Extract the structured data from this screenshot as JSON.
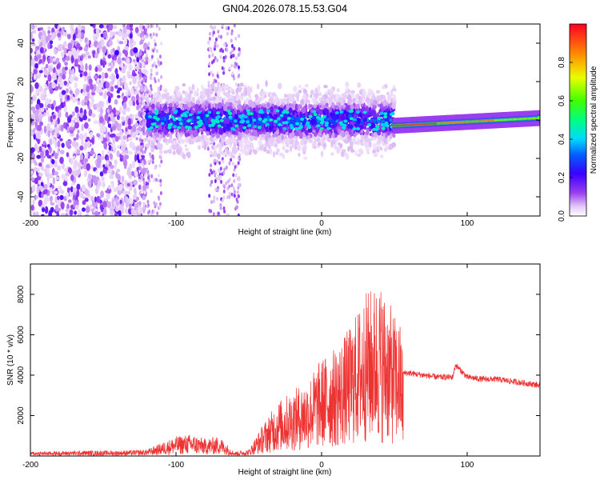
{
  "figure": {
    "title": "GN04.2026.078.15.53.G04"
  },
  "chart_data": [
    {
      "type": "heatmap",
      "xlabel": "Height of straight line (km)",
      "ylabel": "Frequency (Hz)",
      "xlim": [
        -200,
        150
      ],
      "ylim": [
        -50,
        50
      ],
      "xticks": [
        "-200",
        "-100",
        "0",
        "100"
      ],
      "xtick_values": [
        -200,
        -100,
        0,
        100
      ],
      "yticks": [
        "-40",
        "-20",
        "0",
        "20",
        "40"
      ],
      "ytick_values": [
        -40,
        -20,
        0,
        20,
        40
      ],
      "colorbar": {
        "label": "Normalized spectral amplitude",
        "range": [
          0,
          1
        ],
        "ticks": [
          "0.0",
          "0.2",
          "0.4",
          "0.6",
          "0.8"
        ],
        "tick_values": [
          0,
          0.2,
          0.4,
          0.6,
          0.8
        ],
        "colormap": [
          "#ffffff",
          "#8a2be2",
          "#0000ff",
          "#00ffff",
          "#00ff00",
          "#ffff00",
          "#ff0000"
        ]
      },
      "regions": [
        {
          "x": [
            -200,
            -130
          ],
          "description_amplitude": 0.12,
          "freq_spread": 50
        },
        {
          "x": [
            -130,
            50
          ],
          "description_amplitude": 0.25,
          "freq_spread": 12
        },
        {
          "x": [
            50,
            150
          ],
          "description_amplitude": 0.9,
          "freq_center": -3
        }
      ],
      "grid": false
    },
    {
      "type": "line",
      "xlabel": "Height of straight line (km)",
      "ylabel": "SNR (10 * v/v)",
      "xlim": [
        -200,
        150
      ],
      "ylim": [
        0,
        9500
      ],
      "xticks": [
        "-200",
        "-100",
        "0",
        "100"
      ],
      "xtick_values": [
        -200,
        -100,
        0,
        100
      ],
      "yticks": [
        "2000",
        "4000",
        "6000",
        "8000"
      ],
      "ytick_values": [
        2000,
        4000,
        6000,
        8000
      ],
      "color": "#ee3333",
      "series": [
        {
          "x": [
            -200,
            -180,
            -160,
            -140,
            -120,
            -110,
            -100,
            -90,
            -80,
            -70,
            -60,
            -50,
            -40,
            -30,
            -20,
            -10,
            0,
            10,
            20,
            30,
            40,
            50,
            55,
            56,
            60,
            70,
            80,
            90,
            92,
            100,
            110,
            120,
            130,
            140,
            150
          ],
          "values": [
            200,
            220,
            250,
            240,
            300,
            600,
            900,
            1000,
            800,
            900,
            200,
            300,
            1500,
            2500,
            3000,
            3500,
            4500,
            5000,
            6000,
            7500,
            8000,
            6500,
            6000,
            4100,
            4100,
            4000,
            3900,
            3900,
            4500,
            3900,
            3800,
            3800,
            3700,
            3600,
            3500
          ]
        }
      ],
      "grid": false
    }
  ]
}
